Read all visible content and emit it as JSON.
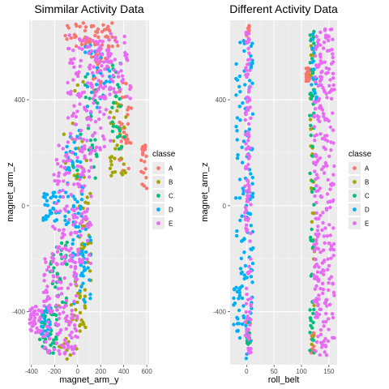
{
  "chart_data": [
    {
      "type": "scatter",
      "title": "Simmilar Activity Data",
      "xlabel": "magnet_arm_y",
      "ylabel": "magnet_arm_z",
      "xlim": [
        -420,
        620
      ],
      "ylim": [
        -600,
        700
      ],
      "xticks": [
        -400,
        -200,
        0,
        200,
        400,
        600
      ],
      "yticks": [
        -400,
        0,
        400
      ],
      "grid": true,
      "legend": {
        "title": "classe",
        "position": "right",
        "entries": [
          "A",
          "B",
          "C",
          "D",
          "E"
        ]
      },
      "series": [
        {
          "name": "A",
          "color": "#F8766D",
          "regions": [
            {
              "n": 30,
              "x": [
                -140,
                160
              ],
              "y": [
                600,
                690
              ]
            },
            {
              "n": 40,
              "x": [
                100,
                350
              ],
              "y": [
                520,
                690
              ]
            },
            {
              "n": 35,
              "x": [
                350,
                470
              ],
              "y": [
                130,
                470
              ]
            },
            {
              "n": 20,
              "x": [
                550,
                600
              ],
              "y": [
                60,
                230
              ]
            },
            {
              "n": 15,
              "x": [
                130,
                220
              ],
              "y": [
                420,
                600
              ]
            }
          ]
        },
        {
          "name": "B",
          "color": "#A3A500",
          "regions": [
            {
              "n": 35,
              "x": [
                -170,
                70
              ],
              "y": [
                -580,
                -280
              ]
            },
            {
              "n": 30,
              "x": [
                280,
                430
              ],
              "y": [
                100,
                400
              ]
            },
            {
              "n": 30,
              "x": [
                0,
                120
              ],
              "y": [
                -330,
                60
              ]
            },
            {
              "n": 20,
              "x": [
                -120,
                90
              ],
              "y": [
                100,
                550
              ]
            }
          ]
        },
        {
          "name": "C",
          "color": "#00BF7D",
          "regions": [
            {
              "n": 40,
              "x": [
                -330,
                -170
              ],
              "y": [
                -560,
                -380
              ]
            },
            {
              "n": 30,
              "x": [
                -250,
                -90
              ],
              "y": [
                -380,
                -130
              ]
            },
            {
              "n": 25,
              "x": [
                -60,
                180
              ],
              "y": [
                100,
                500
              ]
            },
            {
              "n": 25,
              "x": [
                300,
                420
              ],
              "y": [
                200,
                560
              ]
            }
          ]
        },
        {
          "name": "D",
          "color": "#00B0F6",
          "regions": [
            {
              "n": 50,
              "x": [
                -110,
                50
              ],
              "y": [
                -80,
                300
              ]
            },
            {
              "n": 30,
              "x": [
                -300,
                -150
              ],
              "y": [
                -60,
                60
              ]
            },
            {
              "n": 40,
              "x": [
                -50,
                120
              ],
              "y": [
                -380,
                -70
              ]
            },
            {
              "n": 30,
              "x": [
                60,
                300
              ],
              "y": [
                350,
                620
              ]
            },
            {
              "n": 20,
              "x": [
                -320,
                -230
              ],
              "y": [
                -500,
                -380
              ]
            }
          ]
        },
        {
          "name": "E",
          "color": "#E76BF3",
          "regions": [
            {
              "n": 140,
              "x": [
                -300,
                0
              ],
              "y": [
                -560,
                -180
              ]
            },
            {
              "n": 130,
              "x": [
                -220,
                120
              ],
              "y": [
                -220,
                230
              ]
            },
            {
              "n": 130,
              "x": [
                -90,
                300
              ],
              "y": [
                200,
                650
              ]
            },
            {
              "n": 60,
              "x": [
                150,
                460
              ],
              "y": [
                380,
                650
              ]
            },
            {
              "n": 40,
              "x": [
                -420,
                -310
              ],
              "y": [
                -480,
                -380
              ]
            }
          ]
        }
      ]
    },
    {
      "type": "scatter",
      "title": "Different Activity Data",
      "xlabel": "roll_belt",
      "ylabel": "magnet_arm_z",
      "xlim": [
        -30,
        165
      ],
      "ylim": [
        -600,
        700
      ],
      "xticks": [
        0,
        50,
        100,
        150
      ],
      "yticks": [
        -400,
        0,
        400
      ],
      "grid": true,
      "legend": {
        "title": "classe",
        "position": "right",
        "entries": [
          "A",
          "B",
          "C",
          "D",
          "E"
        ]
      },
      "series": [
        {
          "name": "A",
          "color": "#F8766D",
          "regions": [
            {
              "n": 10,
              "x": [
                0,
                6
              ],
              "y": [
                610,
                680
              ]
            },
            {
              "n": 20,
              "x": [
                108,
                116
              ],
              "y": [
                470,
                520
              ]
            },
            {
              "n": 15,
              "x": [
                118,
                124
              ],
              "y": [
                -560,
                -480
              ]
            }
          ]
        },
        {
          "name": "B",
          "color": "#A3A500",
          "regions": [
            {
              "n": 30,
              "x": [
                116,
                124
              ],
              "y": [
                -560,
                650
              ]
            },
            {
              "n": 10,
              "x": [
                0,
                8
              ],
              "y": [
                -520,
                -420
              ]
            }
          ]
        },
        {
          "name": "C",
          "color": "#00BF7D",
          "regions": [
            {
              "n": 60,
              "x": [
                115,
                123
              ],
              "y": [
                -560,
                670
              ]
            },
            {
              "n": 10,
              "x": [
                0,
                8
              ],
              "y": [
                -540,
                -480
              ]
            }
          ]
        },
        {
          "name": "D",
          "color": "#00B0F6",
          "regions": [
            {
              "n": 120,
              "x": [
                -20,
                12
              ],
              "y": [
                -580,
                650
              ]
            },
            {
              "n": 25,
              "x": [
                118,
                128
              ],
              "y": [
                380,
                660
              ]
            },
            {
              "n": 20,
              "x": [
                -24,
                -12
              ],
              "y": [
                -500,
                -300
              ]
            }
          ]
        },
        {
          "name": "E",
          "color": "#E76BF3",
          "regions": [
            {
              "n": 120,
              "x": [
                -3,
                8
              ],
              "y": [
                -560,
                660
              ]
            },
            {
              "n": 260,
              "x": [
                124,
                160
              ],
              "y": [
                -570,
                670
              ]
            },
            {
              "n": 30,
              "x": [
                122,
                128
              ],
              "y": [
                -400,
                400
              ]
            }
          ]
        }
      ]
    }
  ]
}
